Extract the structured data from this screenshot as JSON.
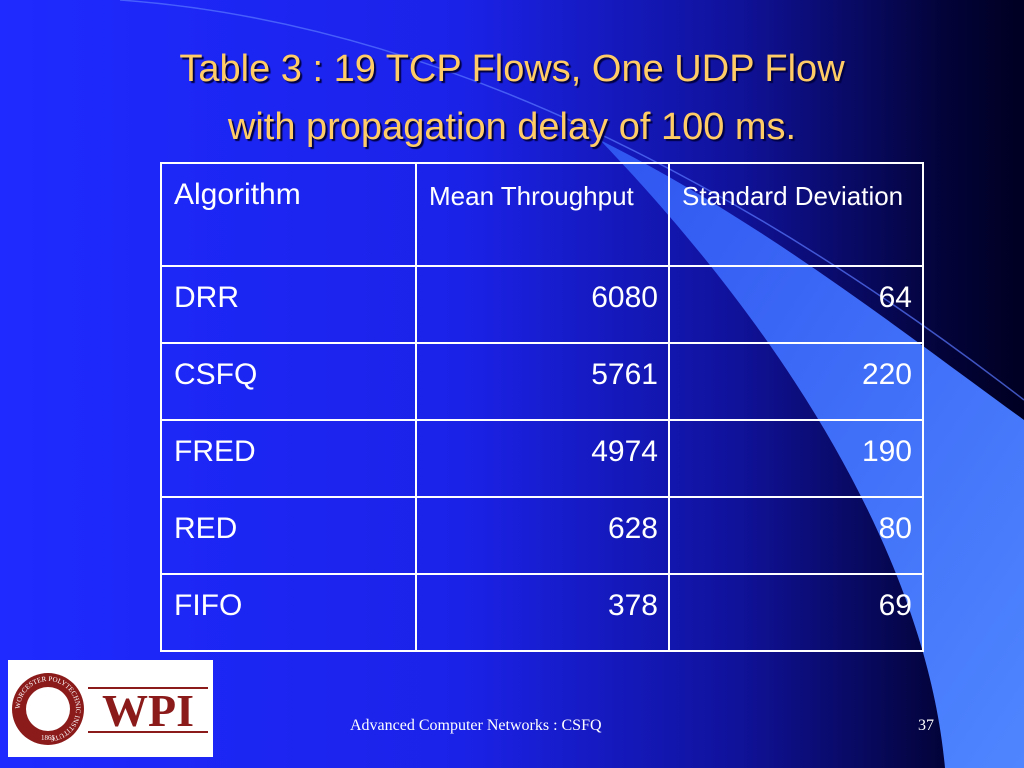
{
  "header": {
    "title": [
      "Table 3 : 19 TCP Flows, One UDP Flow",
      "with propagation delay of 100 ms."
    ]
  },
  "table": {
    "columns": [
      "Algorithm",
      "Mean Throughput",
      "Standard Deviation"
    ],
    "rows": [
      [
        "DRR",
        "6080",
        "64"
      ],
      [
        "CSFQ",
        "5761",
        "220"
      ],
      [
        "FRED",
        "4974",
        "190"
      ],
      [
        "RED",
        "628",
        "80"
      ],
      [
        "FIFO",
        "378",
        "69"
      ]
    ]
  },
  "logo": {
    "name": "WPI",
    "seal_text": "WORCESTER POLYTECHNIC INSTITUTE",
    "seal_year": "1865"
  },
  "footer": {
    "text": "Advanced Computer Networks : CSFQ",
    "page": "37"
  }
}
